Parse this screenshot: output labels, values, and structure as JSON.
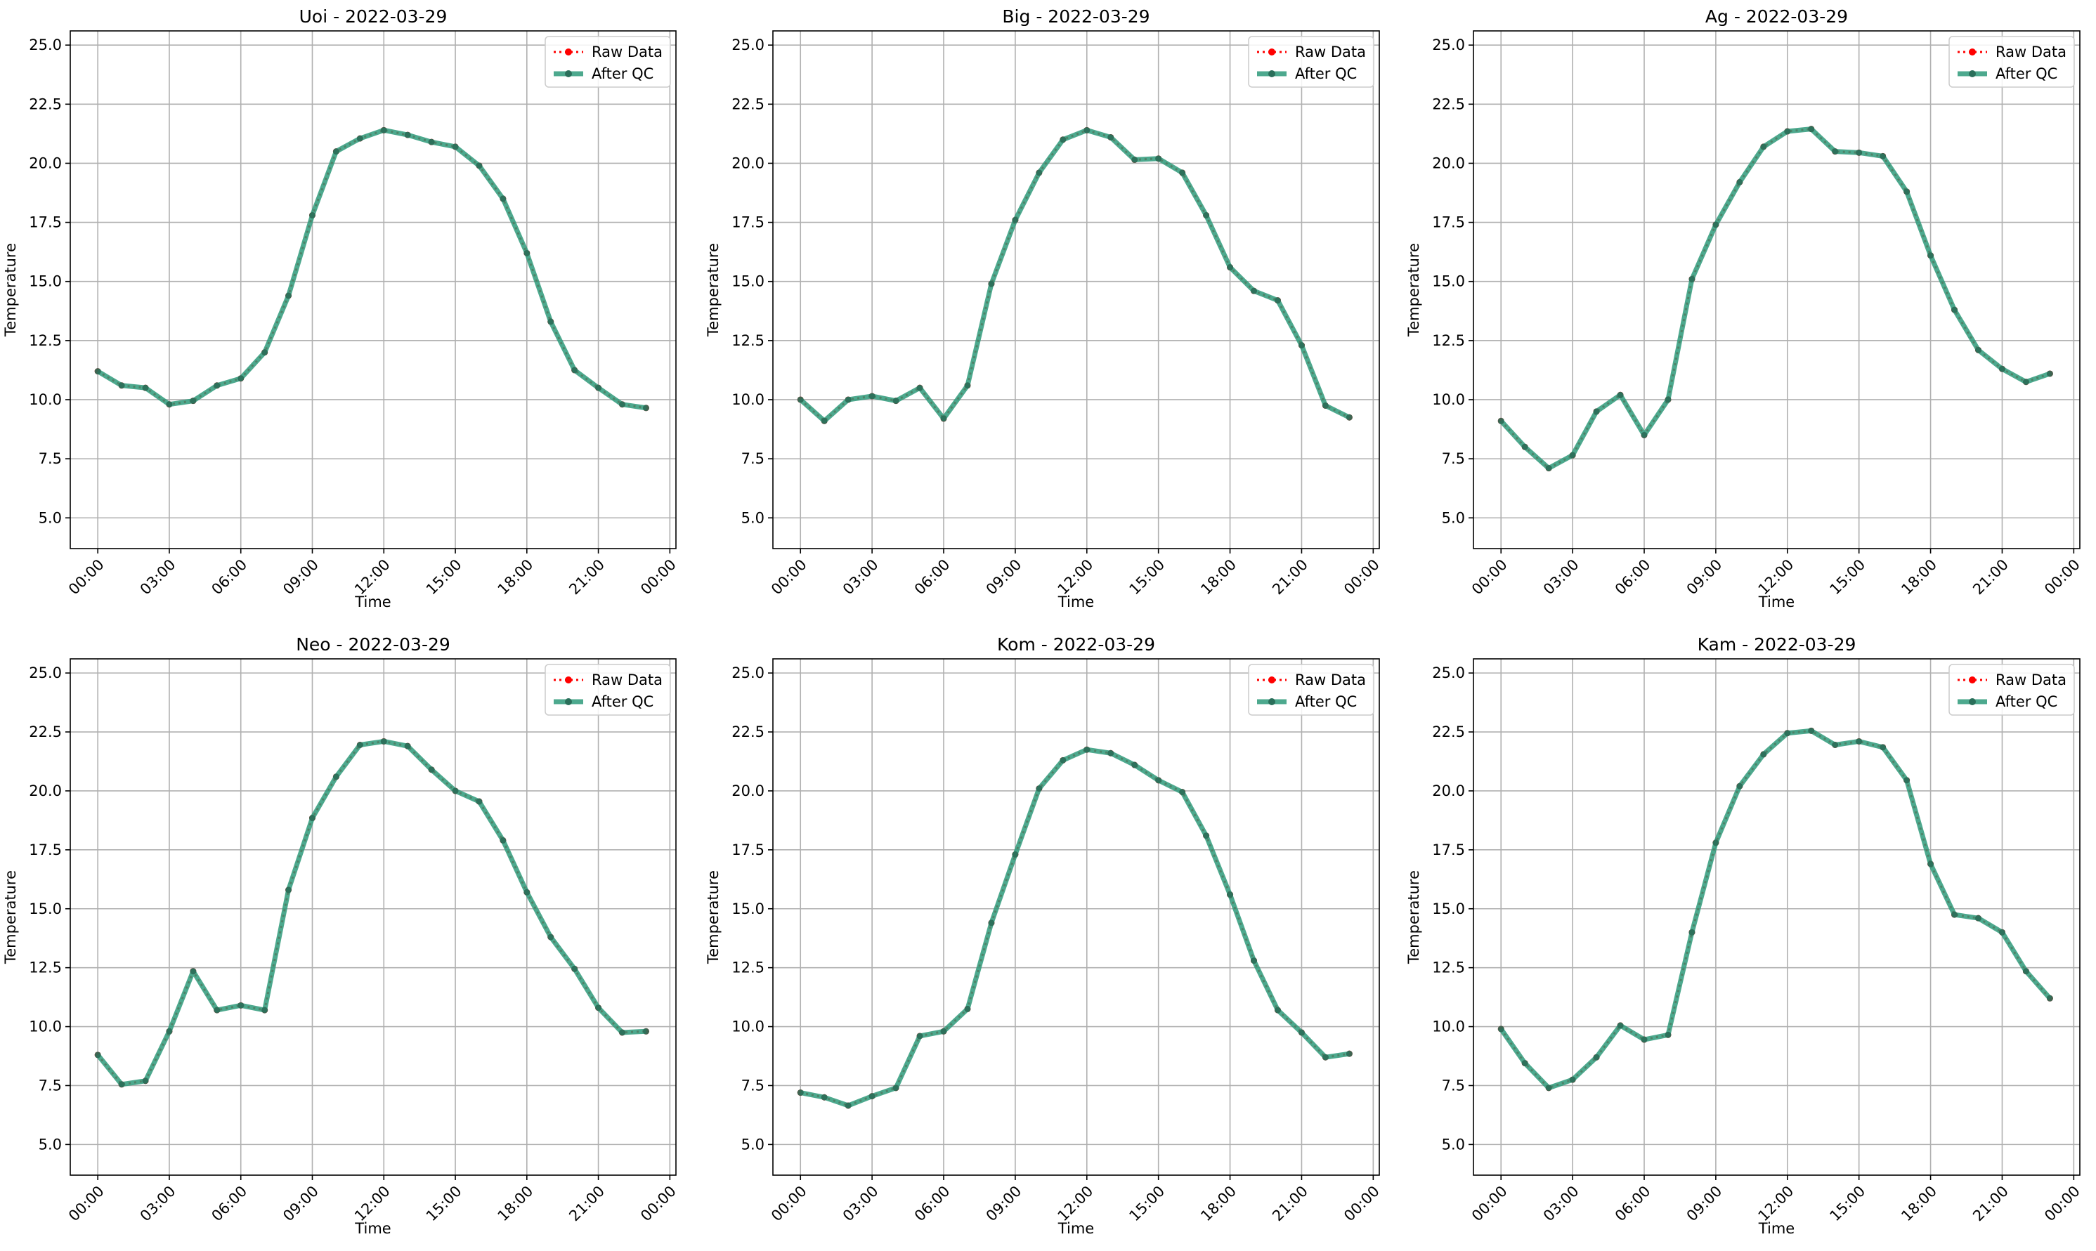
{
  "colors": {
    "raw": "#ff0000",
    "qc": "#2e9a7a",
    "grid": "#b0b0b0",
    "axis": "#000000"
  },
  "chart_data": [
    {
      "type": "line",
      "title": "Uoi - 2022-03-29",
      "xlabel": "Time",
      "ylabel": "Temperature",
      "x_ticks": [
        "00:00",
        "03:00",
        "06:00",
        "09:00",
        "12:00",
        "15:00",
        "18:00",
        "21:00",
        "00:00"
      ],
      "y_ticks": [
        "5.0",
        "7.5",
        "10.0",
        "12.5",
        "15.0",
        "17.5",
        "20.0",
        "22.5",
        "25.0"
      ],
      "ylim": [
        3.7,
        25.6
      ],
      "grid": true,
      "legend": "top-right",
      "series": [
        {
          "name": "Raw Data",
          "x": [
            "00:00",
            "01:00",
            "02:00",
            "03:00",
            "04:00",
            "05:00",
            "06:00",
            "07:00",
            "08:00",
            "09:00",
            "10:00",
            "11:00",
            "12:00",
            "13:00",
            "14:00",
            "15:00",
            "16:00",
            "17:00",
            "18:00",
            "19:00",
            "20:00",
            "21:00",
            "22:00",
            "23:00"
          ],
          "values": [
            11.2,
            10.6,
            10.5,
            9.8,
            9.95,
            10.6,
            10.9,
            12.0,
            14.4,
            17.8,
            20.5,
            21.05,
            21.4,
            21.2,
            20.9,
            20.7,
            19.9,
            18.5,
            16.2,
            13.3,
            11.25,
            10.5,
            9.8,
            9.65
          ]
        },
        {
          "name": "After QC",
          "x": [
            "00:00",
            "01:00",
            "02:00",
            "03:00",
            "04:00",
            "05:00",
            "06:00",
            "07:00",
            "08:00",
            "09:00",
            "10:00",
            "11:00",
            "12:00",
            "13:00",
            "14:00",
            "15:00",
            "16:00",
            "17:00",
            "18:00",
            "19:00",
            "20:00",
            "21:00",
            "22:00",
            "23:00"
          ],
          "values": [
            11.2,
            10.6,
            10.5,
            9.8,
            9.95,
            10.6,
            10.9,
            12.0,
            14.4,
            17.8,
            20.5,
            21.05,
            21.4,
            21.2,
            20.9,
            20.7,
            19.9,
            18.5,
            16.2,
            13.3,
            11.25,
            10.5,
            9.8,
            9.65
          ]
        }
      ]
    },
    {
      "type": "line",
      "title": "Big - 2022-03-29",
      "xlabel": "Time",
      "ylabel": "Temperature",
      "x_ticks": [
        "00:00",
        "03:00",
        "06:00",
        "09:00",
        "12:00",
        "15:00",
        "18:00",
        "21:00",
        "00:00"
      ],
      "y_ticks": [
        "5.0",
        "7.5",
        "10.0",
        "12.5",
        "15.0",
        "17.5",
        "20.0",
        "22.5",
        "25.0"
      ],
      "ylim": [
        3.7,
        25.6
      ],
      "grid": true,
      "legend": "top-right",
      "series": [
        {
          "name": "Raw Data",
          "x": [
            "00:00",
            "01:00",
            "02:00",
            "03:00",
            "04:00",
            "05:00",
            "06:00",
            "07:00",
            "08:00",
            "09:00",
            "10:00",
            "11:00",
            "12:00",
            "13:00",
            "14:00",
            "15:00",
            "16:00",
            "17:00",
            "18:00",
            "19:00",
            "20:00",
            "21:00",
            "22:00",
            "23:00"
          ],
          "values": [
            10.0,
            9.1,
            10.0,
            10.15,
            9.95,
            10.5,
            9.2,
            10.6,
            14.9,
            17.6,
            19.6,
            21.0,
            21.4,
            21.1,
            20.15,
            20.2,
            19.6,
            17.8,
            15.6,
            14.6,
            14.2,
            12.3,
            9.75,
            9.25
          ]
        },
        {
          "name": "After QC",
          "x": [
            "00:00",
            "01:00",
            "02:00",
            "03:00",
            "04:00",
            "05:00",
            "06:00",
            "07:00",
            "08:00",
            "09:00",
            "10:00",
            "11:00",
            "12:00",
            "13:00",
            "14:00",
            "15:00",
            "16:00",
            "17:00",
            "18:00",
            "19:00",
            "20:00",
            "21:00",
            "22:00",
            "23:00"
          ],
          "values": [
            10.0,
            9.1,
            10.0,
            10.15,
            9.95,
            10.5,
            9.2,
            10.6,
            14.9,
            17.6,
            19.6,
            21.0,
            21.4,
            21.1,
            20.15,
            20.2,
            19.6,
            17.8,
            15.6,
            14.6,
            14.2,
            12.3,
            9.75,
            9.25
          ]
        }
      ]
    },
    {
      "type": "line",
      "title": "Ag - 2022-03-29",
      "xlabel": "Time",
      "ylabel": "Temperature",
      "x_ticks": [
        "00:00",
        "03:00",
        "06:00",
        "09:00",
        "12:00",
        "15:00",
        "18:00",
        "21:00",
        "00:00"
      ],
      "y_ticks": [
        "5.0",
        "7.5",
        "10.0",
        "12.5",
        "15.0",
        "17.5",
        "20.0",
        "22.5",
        "25.0"
      ],
      "ylim": [
        3.7,
        25.6
      ],
      "grid": true,
      "legend": "top-right",
      "series": [
        {
          "name": "Raw Data",
          "x": [
            "00:00",
            "01:00",
            "02:00",
            "03:00",
            "04:00",
            "05:00",
            "06:00",
            "07:00",
            "08:00",
            "09:00",
            "10:00",
            "11:00",
            "12:00",
            "13:00",
            "14:00",
            "15:00",
            "16:00",
            "17:00",
            "18:00",
            "19:00",
            "20:00",
            "21:00",
            "22:00",
            "23:00"
          ],
          "values": [
            9.1,
            8.0,
            7.1,
            7.65,
            9.5,
            10.2,
            8.5,
            10.0,
            15.1,
            17.4,
            19.2,
            20.7,
            21.35,
            21.45,
            20.5,
            20.45,
            20.3,
            18.8,
            16.1,
            13.8,
            12.1,
            11.3,
            10.75,
            11.1
          ]
        },
        {
          "name": "After QC",
          "x": [
            "00:00",
            "01:00",
            "02:00",
            "03:00",
            "04:00",
            "05:00",
            "06:00",
            "07:00",
            "08:00",
            "09:00",
            "10:00",
            "11:00",
            "12:00",
            "13:00",
            "14:00",
            "15:00",
            "16:00",
            "17:00",
            "18:00",
            "19:00",
            "20:00",
            "21:00",
            "22:00",
            "23:00"
          ],
          "values": [
            9.1,
            8.0,
            7.1,
            7.65,
            9.5,
            10.2,
            8.5,
            10.0,
            15.1,
            17.4,
            19.2,
            20.7,
            21.35,
            21.45,
            20.5,
            20.45,
            20.3,
            18.8,
            16.1,
            13.8,
            12.1,
            11.3,
            10.75,
            11.1
          ]
        }
      ]
    },
    {
      "type": "line",
      "title": "Neo - 2022-03-29",
      "xlabel": "Time",
      "ylabel": "Temperature",
      "x_ticks": [
        "00:00",
        "03:00",
        "06:00",
        "09:00",
        "12:00",
        "15:00",
        "18:00",
        "21:00",
        "00:00"
      ],
      "y_ticks": [
        "5.0",
        "7.5",
        "10.0",
        "12.5",
        "15.0",
        "17.5",
        "20.0",
        "22.5",
        "25.0"
      ],
      "ylim": [
        3.7,
        25.6
      ],
      "grid": true,
      "legend": "top-right",
      "series": [
        {
          "name": "Raw Data",
          "x": [
            "00:00",
            "01:00",
            "02:00",
            "03:00",
            "04:00",
            "05:00",
            "06:00",
            "07:00",
            "08:00",
            "09:00",
            "10:00",
            "11:00",
            "12:00",
            "13:00",
            "14:00",
            "15:00",
            "16:00",
            "17:00",
            "18:00",
            "19:00",
            "20:00",
            "21:00",
            "22:00",
            "23:00"
          ],
          "values": [
            8.8,
            7.55,
            7.7,
            9.8,
            12.35,
            10.7,
            10.9,
            10.7,
            15.8,
            18.85,
            20.6,
            21.95,
            22.1,
            21.9,
            20.9,
            20.0,
            19.55,
            17.9,
            15.7,
            13.8,
            12.45,
            10.8,
            9.75,
            9.8
          ]
        },
        {
          "name": "After QC",
          "x": [
            "00:00",
            "01:00",
            "02:00",
            "03:00",
            "04:00",
            "05:00",
            "06:00",
            "07:00",
            "08:00",
            "09:00",
            "10:00",
            "11:00",
            "12:00",
            "13:00",
            "14:00",
            "15:00",
            "16:00",
            "17:00",
            "18:00",
            "19:00",
            "20:00",
            "21:00",
            "22:00",
            "23:00"
          ],
          "values": [
            8.8,
            7.55,
            7.7,
            9.8,
            12.35,
            10.7,
            10.9,
            10.7,
            15.8,
            18.85,
            20.6,
            21.95,
            22.1,
            21.9,
            20.9,
            20.0,
            19.55,
            17.9,
            15.7,
            13.8,
            12.45,
            10.8,
            9.75,
            9.8
          ]
        }
      ]
    },
    {
      "type": "line",
      "title": "Kom - 2022-03-29",
      "xlabel": "Time",
      "ylabel": "Temperature",
      "x_ticks": [
        "00:00",
        "03:00",
        "06:00",
        "09:00",
        "12:00",
        "15:00",
        "18:00",
        "21:00",
        "00:00"
      ],
      "y_ticks": [
        "5.0",
        "7.5",
        "10.0",
        "12.5",
        "15.0",
        "17.5",
        "20.0",
        "22.5",
        "25.0"
      ],
      "ylim": [
        3.7,
        25.6
      ],
      "grid": true,
      "legend": "top-right",
      "series": [
        {
          "name": "Raw Data",
          "x": [
            "00:00",
            "01:00",
            "02:00",
            "03:00",
            "04:00",
            "05:00",
            "06:00",
            "07:00",
            "08:00",
            "09:00",
            "10:00",
            "11:00",
            "12:00",
            "13:00",
            "14:00",
            "15:00",
            "16:00",
            "17:00",
            "18:00",
            "19:00",
            "20:00",
            "21:00",
            "22:00",
            "23:00"
          ],
          "values": [
            7.2,
            7.0,
            6.65,
            7.05,
            7.4,
            9.6,
            9.8,
            10.75,
            14.4,
            17.3,
            20.1,
            21.3,
            21.75,
            21.6,
            21.1,
            20.45,
            19.95,
            18.1,
            15.6,
            12.8,
            10.7,
            9.75,
            8.7,
            8.85
          ]
        },
        {
          "name": "After QC",
          "x": [
            "00:00",
            "01:00",
            "02:00",
            "03:00",
            "04:00",
            "05:00",
            "06:00",
            "07:00",
            "08:00",
            "09:00",
            "10:00",
            "11:00",
            "12:00",
            "13:00",
            "14:00",
            "15:00",
            "16:00",
            "17:00",
            "18:00",
            "19:00",
            "20:00",
            "21:00",
            "22:00",
            "23:00"
          ],
          "values": [
            7.2,
            7.0,
            6.65,
            7.05,
            7.4,
            9.6,
            9.8,
            10.75,
            14.4,
            17.3,
            20.1,
            21.3,
            21.75,
            21.6,
            21.1,
            20.45,
            19.95,
            18.1,
            15.6,
            12.8,
            10.7,
            9.75,
            8.7,
            8.85
          ]
        }
      ]
    },
    {
      "type": "line",
      "title": "Kam - 2022-03-29",
      "xlabel": "Time",
      "ylabel": "Temperature",
      "x_ticks": [
        "00:00",
        "03:00",
        "06:00",
        "09:00",
        "12:00",
        "15:00",
        "18:00",
        "21:00",
        "00:00"
      ],
      "y_ticks": [
        "5.0",
        "7.5",
        "10.0",
        "12.5",
        "15.0",
        "17.5",
        "20.0",
        "22.5",
        "25.0"
      ],
      "ylim": [
        3.7,
        25.6
      ],
      "grid": true,
      "legend": "top-right",
      "series": [
        {
          "name": "Raw Data",
          "x": [
            "00:00",
            "01:00",
            "02:00",
            "03:00",
            "04:00",
            "05:00",
            "06:00",
            "07:00",
            "08:00",
            "09:00",
            "10:00",
            "11:00",
            "12:00",
            "13:00",
            "14:00",
            "15:00",
            "16:00",
            "17:00",
            "18:00",
            "19:00",
            "20:00",
            "21:00",
            "22:00",
            "23:00"
          ],
          "values": [
            9.9,
            8.45,
            7.4,
            7.75,
            8.7,
            10.05,
            9.45,
            9.65,
            14.0,
            17.8,
            20.2,
            21.55,
            22.45,
            22.55,
            21.95,
            22.1,
            21.85,
            20.45,
            16.9,
            14.75,
            14.6,
            14.0,
            12.35,
            11.2
          ]
        },
        {
          "name": "After QC",
          "x": [
            "00:00",
            "01:00",
            "02:00",
            "03:00",
            "04:00",
            "05:00",
            "06:00",
            "07:00",
            "08:00",
            "09:00",
            "10:00",
            "11:00",
            "12:00",
            "13:00",
            "14:00",
            "15:00",
            "16:00",
            "17:00",
            "18:00",
            "19:00",
            "20:00",
            "21:00",
            "22:00",
            "23:00"
          ],
          "values": [
            9.9,
            8.45,
            7.4,
            7.75,
            8.7,
            10.05,
            9.45,
            9.65,
            14.0,
            17.8,
            20.2,
            21.55,
            22.45,
            22.55,
            21.95,
            22.1,
            21.85,
            20.45,
            16.9,
            14.75,
            14.6,
            14.0,
            12.35,
            11.2
          ]
        }
      ]
    }
  ]
}
